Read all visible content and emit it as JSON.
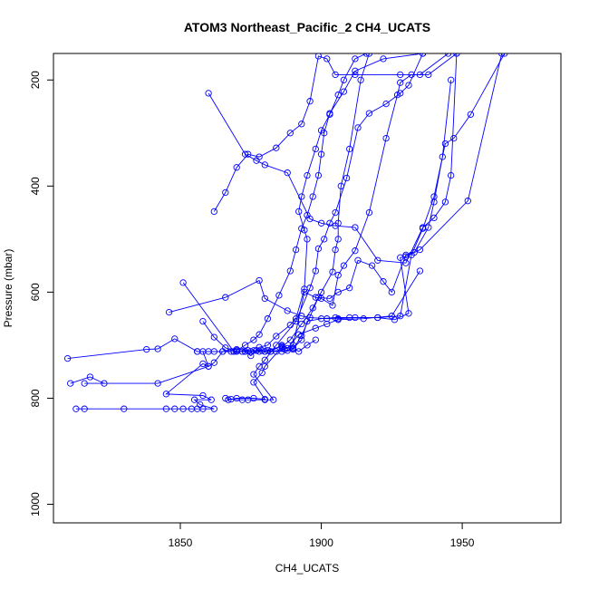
{
  "chart_data": {
    "type": "line",
    "title": "ATOM3 Northeast_Pacific_2 CH4_UCATS",
    "xlabel": "CH4_UCATS",
    "ylabel": "Pressure (mbar)",
    "xlim": [
      1805,
      1985
    ],
    "ylim": [
      1035,
      150
    ],
    "y_reversed": true,
    "x_ticks": [
      1850,
      1900,
      1950
    ],
    "y_ticks": [
      200,
      400,
      600,
      800,
      1000
    ],
    "grid": false,
    "legend": "none",
    "color": "#0000ff",
    "marker": "open-circle",
    "series": [
      {
        "points": [
          [
            1813,
            820
          ],
          [
            1816,
            820
          ],
          [
            1830,
            820
          ],
          [
            1845,
            820
          ],
          [
            1848,
            820
          ],
          [
            1851,
            820
          ],
          [
            1854,
            820
          ],
          [
            1856,
            820
          ],
          [
            1858,
            820
          ],
          [
            1862,
            820
          ],
          [
            1857,
            812
          ],
          [
            1855,
            803
          ],
          [
            1861,
            803
          ],
          [
            1858,
            795
          ],
          [
            1845,
            792
          ],
          [
            1858,
            735
          ],
          [
            1860,
            740
          ],
          [
            1862,
            733
          ],
          [
            1865,
            712
          ],
          [
            1869,
            712
          ],
          [
            1872,
            712
          ],
          [
            1875,
            712
          ],
          [
            1878,
            712
          ],
          [
            1880,
            712
          ],
          [
            1884,
            712
          ],
          [
            1888,
            710
          ],
          [
            1890,
            705
          ],
          [
            1892,
            712
          ],
          [
            1895,
            700
          ],
          [
            1898,
            690
          ]
        ]
      },
      {
        "points": [
          [
            1810,
            725
          ],
          [
            1838,
            708
          ],
          [
            1842,
            707
          ],
          [
            1848,
            688
          ],
          [
            1856,
            712
          ],
          [
            1860,
            712
          ],
          [
            1865,
            712
          ],
          [
            1870,
            708
          ],
          [
            1874,
            710
          ],
          [
            1879,
            710
          ],
          [
            1882,
            712
          ],
          [
            1886,
            700
          ],
          [
            1888,
            706
          ],
          [
            1892,
            680
          ],
          [
            1898,
            668
          ],
          [
            1902,
            660
          ],
          [
            1906,
            652
          ],
          [
            1915,
            650
          ],
          [
            1925,
            645
          ],
          [
            1935,
            560
          ]
        ]
      },
      {
        "points": [
          [
            1811,
            772
          ],
          [
            1818,
            760
          ],
          [
            1823,
            772
          ],
          [
            1816,
            772
          ],
          [
            1842,
            772
          ],
          [
            1860,
            740
          ],
          [
            1858,
            712
          ],
          [
            1856,
            712
          ],
          [
            1862,
            712
          ],
          [
            1868,
            712
          ],
          [
            1873,
            712
          ],
          [
            1877,
            710
          ],
          [
            1881,
            710
          ],
          [
            1886,
            712
          ],
          [
            1890,
            706
          ],
          [
            1893,
            690
          ],
          [
            1895,
            655
          ],
          [
            1900,
            650
          ],
          [
            1905,
            648
          ],
          [
            1910,
            648
          ],
          [
            1920,
            648
          ],
          [
            1928,
            645
          ],
          [
            1932,
            530
          ],
          [
            1936,
            480
          ],
          [
            1940,
            420
          ],
          [
            1944,
            320
          ],
          [
            1947,
            310
          ],
          [
            1953,
            265
          ],
          [
            1965,
            150
          ]
        ]
      },
      {
        "points": [
          [
            1846,
            638
          ],
          [
            1866,
            610
          ],
          [
            1878,
            578
          ],
          [
            1880,
            612
          ],
          [
            1888,
            635
          ],
          [
            1893,
            645
          ],
          [
            1896,
            648
          ],
          [
            1902,
            650
          ],
          [
            1906,
            650
          ],
          [
            1912,
            648
          ],
          [
            1920,
            648
          ],
          [
            1926,
            652
          ],
          [
            1931,
            640
          ],
          [
            1928,
            535
          ],
          [
            1930,
            533
          ],
          [
            1935,
            520
          ],
          [
            1952,
            428
          ],
          [
            1964,
            150
          ]
        ]
      },
      {
        "points": [
          [
            1858,
            655
          ],
          [
            1862,
            685
          ],
          [
            1866,
            705
          ],
          [
            1870,
            712
          ],
          [
            1876,
            710
          ],
          [
            1880,
            712
          ],
          [
            1886,
            702
          ],
          [
            1890,
            708
          ],
          [
            1893,
            682
          ],
          [
            1899,
            610
          ],
          [
            1903,
            612
          ],
          [
            1906,
            600
          ],
          [
            1910,
            592
          ],
          [
            1913,
            540
          ],
          [
            1918,
            550
          ],
          [
            1922,
            580
          ],
          [
            1925,
            600
          ],
          [
            1930,
            530
          ],
          [
            1933,
            525
          ],
          [
            1938,
            478
          ],
          [
            1940,
            430
          ],
          [
            1943,
            345
          ],
          [
            1946,
            200
          ]
        ]
      },
      {
        "points": [
          [
            1851,
            582
          ],
          [
            1869,
            712
          ],
          [
            1872,
            712
          ],
          [
            1877,
            710
          ],
          [
            1882,
            712
          ],
          [
            1887,
            708
          ],
          [
            1890,
            700
          ],
          [
            1894,
            600
          ],
          [
            1898,
            610
          ],
          [
            1900,
            612
          ],
          [
            1904,
            625
          ],
          [
            1906,
            568
          ],
          [
            1908,
            550
          ],
          [
            1912,
            522
          ],
          [
            1917,
            450
          ],
          [
            1923,
            310
          ],
          [
            1927,
            228
          ],
          [
            1928,
            205
          ],
          [
            1932,
            190
          ],
          [
            1938,
            190
          ],
          [
            1948,
            150
          ]
        ]
      },
      {
        "points": [
          [
            1860,
            225
          ],
          [
            1873,
            340
          ],
          [
            1877,
            352
          ],
          [
            1880,
            360
          ],
          [
            1888,
            375
          ],
          [
            1896,
            462
          ],
          [
            1900,
            470
          ],
          [
            1905,
            475
          ],
          [
            1912,
            478
          ],
          [
            1920,
            540
          ],
          [
            1930,
            545
          ],
          [
            1936,
            478
          ],
          [
            1940,
            460
          ],
          [
            1944,
            430
          ],
          [
            1946,
            380
          ],
          [
            1948,
            150
          ]
        ]
      },
      {
        "points": [
          [
            1862,
            448
          ],
          [
            1866,
            412
          ],
          [
            1870,
            365
          ],
          [
            1874,
            340
          ],
          [
            1878,
            345
          ],
          [
            1884,
            328
          ],
          [
            1889,
            300
          ],
          [
            1893,
            283
          ],
          [
            1896,
            240
          ],
          [
            1899,
            155
          ],
          [
            1902,
            160
          ],
          [
            1905,
            190
          ],
          [
            1912,
            190
          ],
          [
            1928,
            190
          ],
          [
            1935,
            190
          ],
          [
            1945,
            150
          ]
        ]
      },
      {
        "points": [
          [
            1866,
            800
          ],
          [
            1868,
            802
          ],
          [
            1872,
            803
          ],
          [
            1874,
            803
          ],
          [
            1880,
            803
          ],
          [
            1883,
            803
          ],
          [
            1876,
            755
          ],
          [
            1878,
            740
          ],
          [
            1880,
            728
          ],
          [
            1884,
            700
          ],
          [
            1891,
            655
          ],
          [
            1896,
            592
          ],
          [
            1898,
            560
          ],
          [
            1899,
            518
          ],
          [
            1901,
            500
          ],
          [
            1903,
            470
          ],
          [
            1905,
            450
          ],
          [
            1909,
            385
          ],
          [
            1913,
            290
          ],
          [
            1917,
            263
          ],
          [
            1923,
            245
          ],
          [
            1928,
            225
          ],
          [
            1931,
            210
          ],
          [
            1936,
            150
          ]
        ]
      },
      {
        "points": [
          [
            1867,
            803
          ],
          [
            1870,
            800
          ],
          [
            1876,
            800
          ],
          [
            1880,
            802
          ],
          [
            1876,
            770
          ],
          [
            1879,
            752
          ],
          [
            1880,
            740
          ],
          [
            1886,
            704
          ],
          [
            1889,
            690
          ],
          [
            1893,
            660
          ],
          [
            1897,
            630
          ],
          [
            1900,
            600
          ],
          [
            1904,
            562
          ],
          [
            1905,
            520
          ],
          [
            1906,
            500
          ],
          [
            1906,
            470
          ],
          [
            1907,
            400
          ],
          [
            1910,
            330
          ],
          [
            1914,
            200
          ],
          [
            1917,
            150
          ]
        ]
      },
      {
        "points": [
          [
            1873,
            712
          ],
          [
            1875,
            720
          ],
          [
            1878,
            704
          ],
          [
            1881,
            700
          ],
          [
            1884,
            683
          ],
          [
            1889,
            662
          ],
          [
            1891,
            650
          ],
          [
            1894,
            594
          ],
          [
            1895,
            500
          ],
          [
            1894,
            483
          ],
          [
            1892,
            448
          ],
          [
            1893,
            420
          ],
          [
            1895,
            380
          ],
          [
            1898,
            330
          ],
          [
            1900,
            295
          ],
          [
            1903,
            265
          ],
          [
            1906,
            228
          ],
          [
            1908,
            200
          ],
          [
            1912,
            160
          ],
          [
            1916,
            150
          ]
        ]
      },
      {
        "points": [
          [
            1870,
            710
          ],
          [
            1873,
            700
          ],
          [
            1876,
            690
          ],
          [
            1878,
            680
          ],
          [
            1881,
            650
          ],
          [
            1885,
            606
          ],
          [
            1889,
            560
          ],
          [
            1891,
            520
          ],
          [
            1893,
            480
          ],
          [
            1895,
            455
          ],
          [
            1897,
            420
          ],
          [
            1899,
            380
          ],
          [
            1900,
            340
          ],
          [
            1901,
            300
          ],
          [
            1903,
            263
          ],
          [
            1908,
            222
          ],
          [
            1912,
            183
          ],
          [
            1922,
            160
          ],
          [
            1936,
            150
          ]
        ]
      }
    ]
  }
}
